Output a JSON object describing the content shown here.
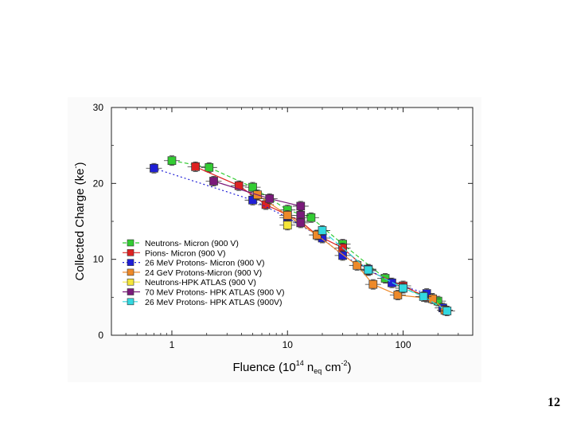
{
  "page_number": "12",
  "chart_data": {
    "type": "scatter",
    "xscale": "log",
    "xlim": [
      0.3,
      400
    ],
    "ylim": [
      0,
      30
    ],
    "xlabel": "Fluence (10",
    "xlabel_exp": "14",
    "xlabel_mid": " n",
    "xlabel_sub": "eq",
    "xlabel_end": " cm",
    "xlabel_exp2": "-2",
    "xlabel_close": ")",
    "ylabel": "Collected Charge (ke",
    "ylabel_exp": "-",
    "ylabel_close": ")",
    "x_ticks": [
      {
        "value": 1,
        "label": "1"
      },
      {
        "value": 10,
        "label": "10"
      },
      {
        "value": 100,
        "label": "100"
      }
    ],
    "y_ticks": [
      {
        "value": 0,
        "label": "0"
      },
      {
        "value": 10,
        "label": "10"
      },
      {
        "value": 20,
        "label": "20"
      },
      {
        "value": 30,
        "label": "30"
      }
    ],
    "legend_position": "lower-left",
    "series": [
      {
        "name": "Neutrons- Micron (900 V)",
        "color": "#33cc33",
        "dash": "5,3",
        "points": [
          [
            1,
            23
          ],
          [
            2.1,
            22.1
          ],
          [
            5,
            19.5
          ],
          [
            10,
            16.5
          ],
          [
            16,
            15.5
          ],
          [
            30,
            12
          ],
          [
            70,
            7.5
          ],
          [
            100,
            6.2
          ],
          [
            200,
            4.5
          ]
        ]
      },
      {
        "name": "Pions- Micron (900 V)",
        "color": "#dd2222",
        "dash": "none",
        "points": [
          [
            1.6,
            22.2
          ],
          [
            3.8,
            19.7
          ],
          [
            6.5,
            17.2
          ],
          [
            13,
            15
          ],
          [
            18,
            13.2
          ],
          [
            30,
            11.5
          ],
          [
            50,
            8.5
          ],
          [
            100,
            6.5
          ],
          [
            160,
            5
          ]
        ]
      },
      {
        "name": "26 MeV Protons- Micron (900 V)",
        "color": "#1f1fd6",
        "dash": "2,3",
        "points": [
          [
            0.7,
            22
          ],
          [
            5,
            17.8
          ],
          [
            10,
            15.5
          ],
          [
            20,
            12.8
          ],
          [
            30,
            10.5
          ],
          [
            50,
            8.7
          ],
          [
            80,
            6.9
          ],
          [
            160,
            5.5
          ],
          [
            220,
            3.6
          ]
        ]
      },
      {
        "name": "24 GeV Protons-Micron (900 V)",
        "color": "#ee8a2a",
        "dash": "none",
        "points": [
          [
            5.5,
            18.5
          ],
          [
            10,
            15.8
          ],
          [
            18,
            13.2
          ],
          [
            40,
            9.2
          ],
          [
            55,
            6.7
          ],
          [
            90,
            5.3
          ],
          [
            180,
            4.8
          ],
          [
            230,
            3.3
          ]
        ]
      },
      {
        "name": "Neutrons-HPK ATLAS (900 V)",
        "color": "#f5e63a",
        "dash": "none",
        "points": [
          [
            10,
            14.5
          ]
        ]
      },
      {
        "name": "70 MeV Protons- HPK ATLAS (900 V)",
        "color": "#7a1a7a",
        "dash": "none",
        "points": [
          [
            2.3,
            20.3
          ],
          [
            7,
            18
          ],
          [
            13,
            17
          ],
          [
            13,
            15.8
          ],
          [
            13,
            14.8
          ]
        ]
      },
      {
        "name": "26 MeV Protons- HPK ATLAS (900V)",
        "color": "#33d8e0",
        "dash": "8,3",
        "points": [
          [
            20,
            13.8
          ],
          [
            50,
            8.6
          ],
          [
            100,
            6.2
          ],
          [
            150,
            5.1
          ],
          [
            240,
            3.2
          ]
        ]
      }
    ]
  }
}
